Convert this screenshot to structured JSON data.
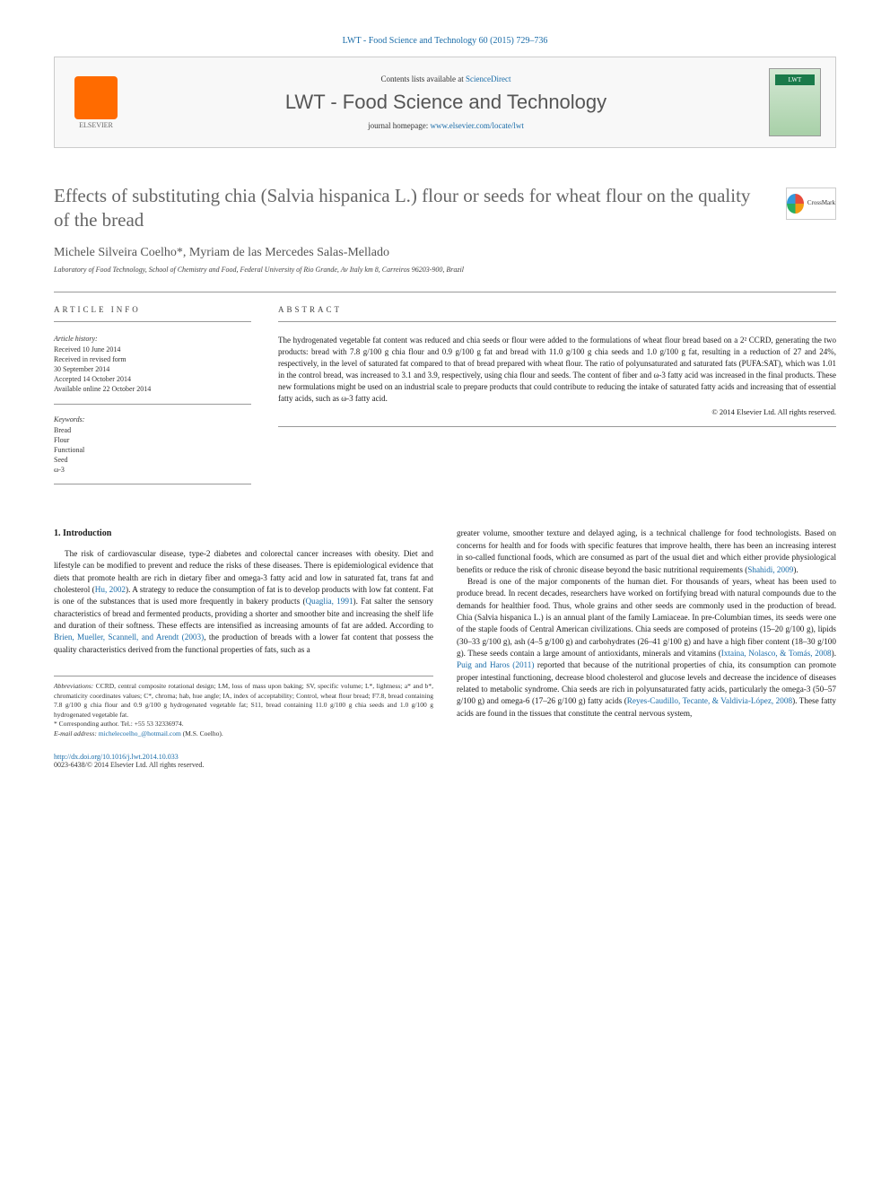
{
  "header": {
    "citation": "LWT - Food Science and Technology 60 (2015) 729–736",
    "contents_prefix": "Contents lists available at ",
    "contents_link": "ScienceDirect",
    "journal_name": "LWT - Food Science and Technology",
    "homepage_prefix": "journal homepage: ",
    "homepage_url": "www.elsevier.com/locate/lwt",
    "elsevier_label": "ELSEVIER",
    "crossmark_label": "CrossMark"
  },
  "title": "Effects of substituting chia (Salvia hispanica L.) flour or seeds for wheat flour on the quality of the bread",
  "authors": "Michele Silveira Coelho*, Myriam de las Mercedes Salas-Mellado",
  "affiliation": "Laboratory of Food Technology, School of Chemistry and Food, Federal University of Rio Grande, Av Italy km 8, Carreiros 96203-900, Brazil",
  "info": {
    "section_label": "ARTICLE INFO",
    "history_label": "Article history:",
    "history": "Received 10 June 2014\nReceived in revised form\n30 September 2014\nAccepted 14 October 2014\nAvailable online 22 October 2014",
    "keywords_label": "Keywords:",
    "keywords": "Bread\nFlour\nFunctional\nSeed\nω-3"
  },
  "abstract": {
    "section_label": "ABSTRACT",
    "text": "The hydrogenated vegetable fat content was reduced and chia seeds or flour were added to the formulations of wheat flour bread based on a 2² CCRD, generating the two products: bread with 7.8 g/100 g chia flour and 0.9 g/100 g fat and bread with 11.0 g/100 g chia seeds and 1.0 g/100 g fat, resulting in a reduction of 27 and 24%, respectively, in the level of saturated fat compared to that of bread prepared with wheat flour. The ratio of polyunsaturated and saturated fats (PUFA:SAT), which was 1.01 in the control bread, was increased to 3.1 and 3.9, respectively, using chia flour and seeds. The content of fiber and ω-3 fatty acid was increased in the final products. These new formulations might be used on an industrial scale to prepare products that could contribute to reducing the intake of saturated fatty acids and increasing that of essential fatty acids, such as ω-3 fatty acid.",
    "copyright": "© 2014 Elsevier Ltd. All rights reserved."
  },
  "body": {
    "intro_heading": "1. Introduction",
    "col1_p1a": "The risk of cardiovascular disease, type-2 diabetes and colorectal cancer increases with obesity. Diet and lifestyle can be modified to prevent and reduce the risks of these diseases. There is epidemiological evidence that diets that promote health are rich in dietary fiber and omega-3 fatty acid and low in saturated fat, trans fat and cholesterol (",
    "link_hu": "Hu, 2002",
    "col1_p1b": "). A strategy to reduce the consumption of fat is to develop products with low fat content. Fat is one of the substances that is used more frequently in bakery products (",
    "link_quaglia": "Quaglia, 1991",
    "col1_p1c": "). Fat salter the sensory characteristics of bread and fermented products, providing a shorter and smoother bite and increasing the shelf life and duration of their softness. These effects are intensified as increasing amounts of fat are added. According to ",
    "link_brien": "Brien, Mueller, Scannell, and Arendt (2003)",
    "col1_p1d": ", the production of breads with a lower fat content that possess the quality characteristics derived from the functional properties of fats, such as a",
    "col2_p1a": "greater volume, smoother texture and delayed aging, is a technical challenge for food technologists. Based on concerns for health and for foods with specific features that improve health, there has been an increasing interest in so-called functional foods, which are consumed as part of the usual diet and which either provide physiological benefits or reduce the risk of chronic disease beyond the basic nutritional requirements (",
    "link_shahidi": "Shahidi, 2009",
    "col2_p1b": ").",
    "col2_p2a": "Bread is one of the major components of the human diet. For thousands of years, wheat has been used to produce bread. In recent decades, researchers have worked on fortifying bread with natural compounds due to the demands for healthier food. Thus, whole grains and other seeds are commonly used in the production of bread. Chia (Salvia hispanica L.) is an annual plant of the family Lamiaceae. In pre-Columbian times, its seeds were one of the staple foods of Central American civilizations. Chia seeds are composed of proteins (15–20 g/100 g), lipids (30–33 g/100 g), ash (4–5 g/100 g) and carbohydrates (26–41 g/100 g) and have a high fiber content (18–30 g/100 g). These seeds contain a large amount of antioxidants, minerals and vitamins (",
    "link_ixtaina": "Ixtaina, Nolasco, & Tomás, 2008",
    "col2_p2b": "). ",
    "link_puig": "Puig and Haros (2011)",
    "col2_p2c": " reported that because of the nutritional properties of chia, its consumption can promote proper intestinal functioning, decrease blood cholesterol and glucose levels and decrease the incidence of diseases related to metabolic syndrome. Chia seeds are rich in polyunsaturated fatty acids, particularly the omega-3 (50–57 g/100 g) and omega-6 (17–26 g/100 g) fatty acids (",
    "link_reyes": "Reyes-Caudillo, Tecante, & Valdivia-López, 2008",
    "col2_p2d": "). These fatty acids are found in the tissues that constitute the central nervous system,"
  },
  "footnotes": {
    "abbrev_label": "Abbreviations:",
    "abbrev_text": " CCRD, central composite rotational design; LM, loss of mass upon baking; SV, specific volume; L*, lightness; a* and b*, chromaticity coordinates values; C*, chroma; hab, hue angle; IA, index of acceptability; Control, wheat flour bread; F7.8, bread containing 7.8 g/100 g chia flour and 0.9 g/100 g hydrogenated vegetable fat; S11, bread containing 11.0 g/100 g chia seeds and 1.0 g/100 g hydrogenated vegetable fat.",
    "corresponding": "* Corresponding author. Tel.: +55 53 32336974.",
    "email_label": "E-mail address: ",
    "email": "michelecoelho_@hotmail.com",
    "email_suffix": " (M.S. Coelho)."
  },
  "footer": {
    "doi": "http://dx.doi.org/10.1016/j.lwt.2014.10.033",
    "issn_line": "0023-6438/© 2014 Elsevier Ltd. All rights reserved."
  },
  "colors": {
    "link": "#1a6ca8",
    "body_text": "#1a1a1a",
    "heading_grey": "#666666",
    "elsevier_orange": "#ff6b00"
  }
}
